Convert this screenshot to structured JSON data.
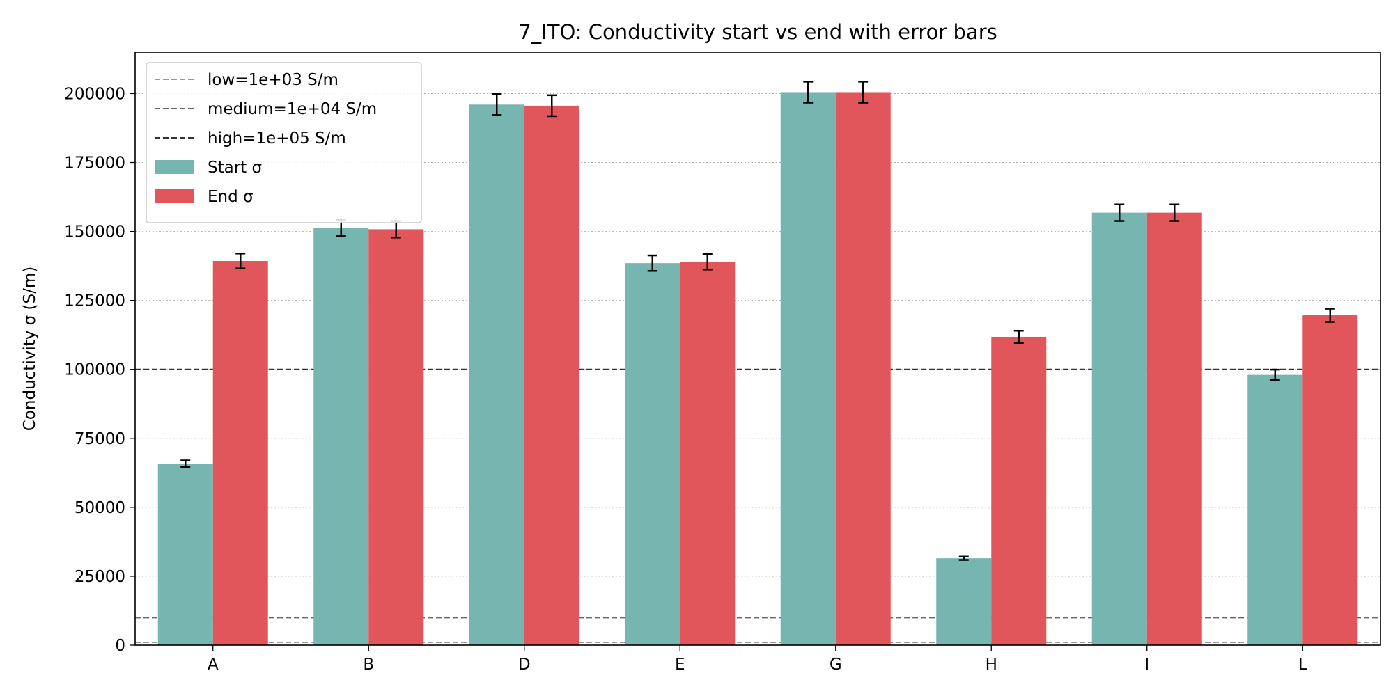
{
  "chart_data": {
    "type": "bar",
    "title": "7_ITO: Conductivity start vs end with error bars",
    "xlabel": "",
    "ylabel": "Conductivity σ (S/m)",
    "ylim": [
      0,
      215000
    ],
    "yticks": [
      0,
      25000,
      50000,
      75000,
      100000,
      125000,
      150000,
      175000,
      200000
    ],
    "grid": "horizontal dotted",
    "legend_position": "top-left",
    "categories": [
      "A",
      "B",
      "D",
      "E",
      "G",
      "H",
      "I",
      "L"
    ],
    "series": [
      {
        "name": "Start σ",
        "color": "#76b5b0",
        "values": [
          65800,
          151300,
          196000,
          138500,
          200500,
          31500,
          156800,
          98000
        ],
        "errors": [
          1200,
          3000,
          3800,
          2800,
          3800,
          600,
          3000,
          1900
        ]
      },
      {
        "name": "End σ",
        "color": "#e0565b",
        "values": [
          139300,
          150800,
          195600,
          139000,
          200500,
          111800,
          156800,
          119600
        ],
        "errors": [
          2700,
          3000,
          3800,
          2800,
          3800,
          2200,
          3000,
          2400
        ]
      }
    ],
    "reference_lines": [
      {
        "label": "low=1e+03 S/m",
        "value": 1000,
        "color": "#999999"
      },
      {
        "label": "medium=1e+04 S/m",
        "value": 10000,
        "color": "#666666"
      },
      {
        "label": "high=1e+05 S/m",
        "value": 100000,
        "color": "#333333"
      }
    ]
  }
}
